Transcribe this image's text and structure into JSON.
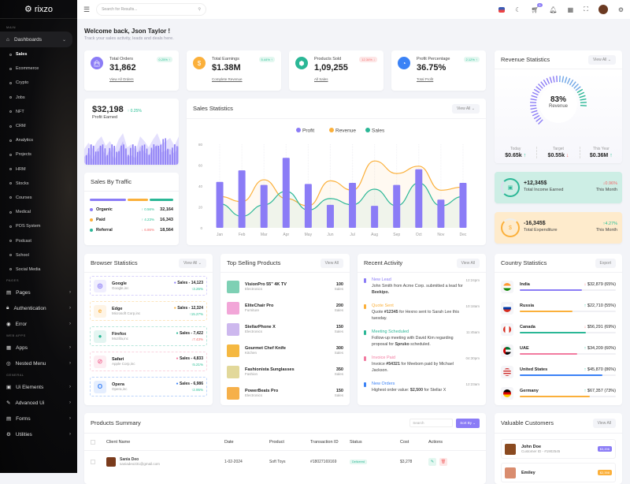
{
  "sidebar": {
    "brand": "rixzo",
    "sections": {
      "main": "MAIN",
      "pages": "PAGES",
      "web_apps": "WEB APPS",
      "general": "GENERAL"
    },
    "dashboards": "Dashboards",
    "sub": [
      "Sales",
      "Ecommerce",
      "Crypto",
      "Jobs",
      "NFT",
      "CRM",
      "Analytics",
      "Projects",
      "HRM",
      "Stocks",
      "Courses",
      "Medical",
      "POS System",
      "Podcast",
      "School",
      "Social Media"
    ],
    "pages": [
      "Pages",
      "Authentication",
      "Error"
    ],
    "apps": [
      "Apps",
      "Nested Menu"
    ],
    "general": [
      "Ui Elements",
      "Advanced Ui",
      "Forms",
      "Utilities"
    ]
  },
  "topbar": {
    "search_placeholder": "Search for Results...",
    "cart_count": "5"
  },
  "welcome": {
    "title": "Welcome back, Json Taylor !",
    "subtitle": "Track your sales activity, leads and deals here."
  },
  "kpis": [
    {
      "label": "Total Orders",
      "value": "31,862",
      "link": "View All Orders",
      "change": "0.25%",
      "dir": "up",
      "color": "#8b7cf6",
      "icon": "bag"
    },
    {
      "label": "Total Earnings",
      "value": "$1.38M",
      "link": "Complete Revenue",
      "change": "5.44%",
      "dir": "up",
      "color": "#fbb03b",
      "icon": "dollar"
    },
    {
      "label": "Products Sold",
      "value": "1,09,255",
      "link": "All Sales",
      "change": "12.34%",
      "dir": "down",
      "color": "#2bb796",
      "icon": "box"
    },
    {
      "label": "Profit Percentage",
      "value": "36.75%",
      "link": "Total Profit",
      "change": "2.12%",
      "dir": "up",
      "color": "#3b82f6",
      "icon": "money-bag"
    }
  ],
  "profit": {
    "value": "$32,198",
    "change": "0.25%",
    "label": "Profit Earned"
  },
  "traffic": {
    "title": "Sales By Traffic",
    "items": [
      {
        "name": "Organic",
        "change": "0.56%",
        "dir": "up",
        "value": "32,164",
        "color": "#8b7cf6"
      },
      {
        "name": "Paid",
        "change": "4.23%",
        "dir": "up",
        "value": "16,343",
        "color": "#fbb03b"
      },
      {
        "name": "Referral",
        "change": "6.86%",
        "dir": "down",
        "value": "18,564",
        "color": "#2bb796"
      }
    ]
  },
  "sales_stats": {
    "title": "Sales Statistics",
    "view_all": "View All"
  },
  "chart_data": {
    "type": "bar",
    "title": "",
    "categories": [
      "Jan",
      "Feb",
      "Mar",
      "Apr",
      "May",
      "Jun",
      "Jul",
      "Aug",
      "Sep",
      "Oct",
      "Nov",
      "Dec"
    ],
    "ylim": [
      0,
      80
    ],
    "yticks": [
      0,
      20,
      40,
      60,
      80
    ],
    "legend": "top-center",
    "grid": true,
    "series": [
      {
        "name": "Profit",
        "type": "bar",
        "color": "#8b7cf6",
        "values": [
          44,
          55,
          41,
          67,
          42,
          22,
          43,
          21,
          41,
          56,
          27,
          43
        ]
      },
      {
        "name": "Revenue",
        "type": "line",
        "color": "#fbb03b",
        "values": [
          30,
          25,
          46,
          28,
          21,
          45,
          36,
          64,
          52,
          59,
          36,
          39
        ]
      },
      {
        "name": "Sales",
        "type": "line",
        "color": "#2bb796",
        "values": [
          23,
          11,
          22,
          35,
          17,
          28,
          22,
          37,
          21,
          43,
          21,
          30
        ]
      }
    ]
  },
  "revenue": {
    "title": "Revenue Statistics",
    "view_all": "View All",
    "percent": "83%",
    "percent_value": 83,
    "label": "Revenue",
    "stats": [
      {
        "label": "Today",
        "value": "$0.65k",
        "dir": "up"
      },
      {
        "label": "Target",
        "value": "$0.55k",
        "dir": "down"
      },
      {
        "label": "This Year",
        "value": "$0.36M",
        "dir": "up"
      }
    ]
  },
  "income": {
    "value": "+12,345$",
    "label": "Total Income Earned",
    "change": "0.96%",
    "dir": "down",
    "period": "This Month"
  },
  "expense": {
    "value": "-16,345$",
    "label": "Total Expenditure",
    "change": "4.27%",
    "dir": "up",
    "period": "This Month"
  },
  "browser": {
    "title": "Browser Statistics",
    "view_all": "View All",
    "items": [
      {
        "name": "Google",
        "company": "Google,inc",
        "sales": "Sales - 14,123",
        "change": "3.26%",
        "dir": "up",
        "color": "#8b7cf6"
      },
      {
        "name": "Edge",
        "company": "Microsoft Corp,inc",
        "sales": "Sales - 12,324",
        "change": "15.27%",
        "dir": "up",
        "color": "#fbb03b"
      },
      {
        "name": "Firefox",
        "company": "Mozilla,inc",
        "sales": "Sales - 7,422",
        "change": "7.43%",
        "dir": "down",
        "color": "#2bb796"
      },
      {
        "name": "Safari",
        "company": "Apple Corp,inc",
        "sales": "Sales - 4,833",
        "change": "5.21%",
        "dir": "up",
        "color": "#f27ba0"
      },
      {
        "name": "Opera",
        "company": "Opera,inc",
        "sales": "Sales - 6,986",
        "change": "2.95%",
        "dir": "up",
        "color": "#3b82f6"
      }
    ]
  },
  "top_products": {
    "title": "Top Selling Products",
    "view_all": "View All",
    "sales_label": "Sales",
    "items": [
      {
        "name": "VisionPro 55\" 4K TV",
        "cat": "Electronics",
        "sales": "100",
        "bg": "#7ed0b4"
      },
      {
        "name": "EliteChair Pro",
        "cat": "Furniture",
        "sales": "200",
        "bg": "#f2a6d8"
      },
      {
        "name": "StellarPhone X",
        "cat": "Electronics",
        "sales": "150",
        "bg": "#cdb8ee"
      },
      {
        "name": "Gourmet Chef Knife",
        "cat": "Kitchen",
        "sales": "300",
        "bg": "#f5b841"
      },
      {
        "name": "Fashionista Sunglasses",
        "cat": "Fashion",
        "sales": "350",
        "bg": "#e2d89a"
      },
      {
        "name": "PowerBeats Pro",
        "cat": "Electronics",
        "sales": "150",
        "bg": "#f6b04a"
      }
    ]
  },
  "activity": {
    "title": "Recent Activity",
    "view_all": "View All",
    "items": [
      {
        "title": "New Lead",
        "time": "12:24pm",
        "text": "John Smith from Acme Corp. submitted a lead for Beekipo.",
        "color": "#8b7cf6"
      },
      {
        "title": "Quote Sent",
        "time": "10:18am",
        "text": "Quote #12345 for Hexno sent to Sarah Lee this tuesday.",
        "color": "#fbb03b"
      },
      {
        "title": "Meeting Scheduled",
        "time": "11:45am",
        "text": "Follow-up meeting with David Kim regarding proposal for Spruko scheduled.",
        "color": "#2bb796"
      },
      {
        "title": "Invoice Paid",
        "time": "04:30pm",
        "text": "Invoice #54321 for Meebom paid by Michael Jackson.",
        "color": "#f27ba0"
      },
      {
        "title": "New Orders",
        "time": "12:23am",
        "text": "Highest order value: $2,500 for Stellar X",
        "color": "#3b82f6"
      }
    ]
  },
  "countries": {
    "title": "Country Statistics",
    "export": "Export",
    "items": [
      {
        "name": "India",
        "value": "$32,879 (65%)",
        "pct": 65,
        "dir": "down",
        "color": "#8b7cf6",
        "flag": "india-flag"
      },
      {
        "name": "Russia",
        "value": "$22,710 (55%)",
        "pct": 55,
        "dir": "up",
        "color": "#fbb03b",
        "flag": "russia-flag"
      },
      {
        "name": "Canada",
        "value": "$56,291 (69%)",
        "pct": 69,
        "dir": "down",
        "color": "#2bb796",
        "flag": "canada-flag"
      },
      {
        "name": "UAE",
        "value": "$34,209 (60%)",
        "pct": 60,
        "dir": "up",
        "color": "#f27ba0",
        "flag": "uae-flag"
      },
      {
        "name": "United States",
        "value": "$45,870 (86%)",
        "pct": 86,
        "dir": "up",
        "color": "#3b82f6",
        "flag": "us-flag"
      },
      {
        "name": "Germany",
        "value": "$67,357 (73%)",
        "pct": 73,
        "dir": "up",
        "color": "#fbb03b",
        "flag": "germany-flag"
      }
    ]
  },
  "products_summary": {
    "title": "Products Summary",
    "search_placeholder": "Search",
    "sort": "Sort By",
    "columns": [
      "Client Name",
      "Date",
      "Product",
      "Transaction ID",
      "Status",
      "Cost",
      "Actions"
    ],
    "rows": [
      {
        "name": "Sania Deo",
        "email": "saniadeo231@gmail.com",
        "date": "1-02-2024",
        "product": "Soft Toys",
        "txn": "#18027169169",
        "status": "Delivered",
        "cost": "$3,278"
      }
    ]
  },
  "customers": {
    "title": "Valuable Customers",
    "view_all": "View All",
    "items": [
      {
        "name": "John Doe",
        "id": "Customer ID - #1902545",
        "amount": "$3,206",
        "color": "#8b7cf6"
      },
      {
        "name": "Emiley",
        "id": "",
        "amount": "$2,398",
        "color": "#fbb03b"
      }
    ]
  }
}
